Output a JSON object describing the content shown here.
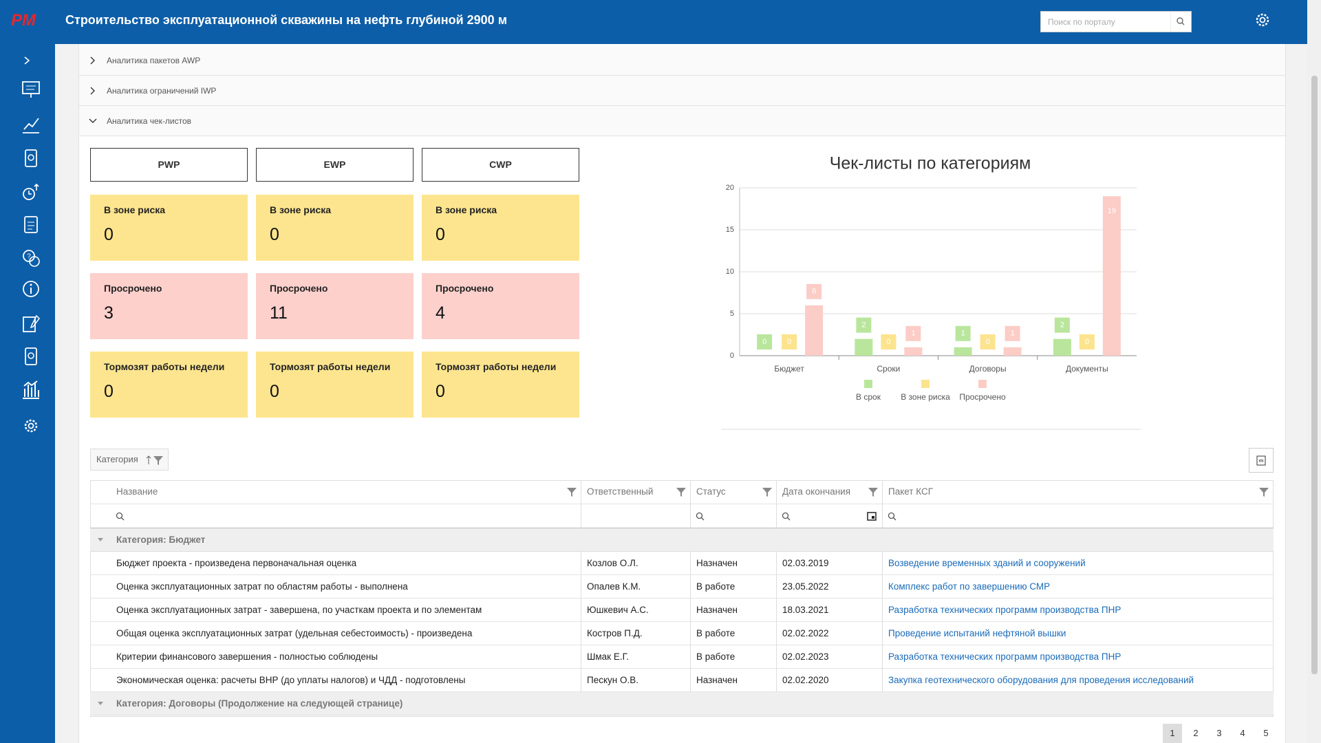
{
  "logo": "PM",
  "header": {
    "title": "Строительство эксплуатационной скважины на нефть глубиной 2900 м",
    "search_placeholder": "Поиск по порталу"
  },
  "accordion": [
    "Аналитика пакетов AWP",
    "Аналитика ограничений IWP",
    "Аналитика чек-листов"
  ],
  "packages": [
    {
      "name": "PWP",
      "tiles": [
        {
          "label": "В зоне риска",
          "value": 0
        },
        {
          "label": "Просрочено",
          "value": 3
        },
        {
          "label": "Тормозят работы недели",
          "value": 0
        }
      ]
    },
    {
      "name": "EWP",
      "tiles": [
        {
          "label": "В зоне риска",
          "value": 0
        },
        {
          "label": "Просрочено",
          "value": 11
        },
        {
          "label": "Тормозят работы недели",
          "value": 0
        }
      ]
    },
    {
      "name": "CWP",
      "tiles": [
        {
          "label": "В зоне риска",
          "value": 0
        },
        {
          "label": "Просрочено",
          "value": 4
        },
        {
          "label": "Тормозят работы недели",
          "value": 0
        }
      ]
    }
  ],
  "chart_data": {
    "type": "bar",
    "title": "Чек-листы по категориям",
    "categories": [
      "Бюджет",
      "Сроки",
      "Договоры",
      "Документы"
    ],
    "series": [
      {
        "name": "В срок",
        "color": "#b9e69c",
        "values": [
          0,
          2,
          1,
          2
        ]
      },
      {
        "name": "В зоне риска",
        "color": "#fce38e",
        "values": [
          0,
          0,
          0,
          0
        ]
      },
      {
        "name": "Просрочено",
        "color": "#fcccc7",
        "values": [
          6,
          1,
          1,
          19
        ]
      }
    ],
    "ylim": [
      0,
      20
    ],
    "yticks": [
      0,
      5,
      10,
      15,
      20
    ],
    "grid": true,
    "legend": "bottom"
  },
  "filter_chip": "Категория",
  "table": {
    "columns": [
      "Название",
      "Ответственный",
      "Статус",
      "Дата окончания",
      "Пакет КСГ"
    ],
    "groups": [
      {
        "label": "Категория: Бюджет",
        "rows": [
          [
            "Бюджет проекта - произведена первоначальная оценка",
            "Козлов О.Л.",
            "Назначен",
            "02.03.2019",
            "Возведение временных зданий и сооружений"
          ],
          [
            "Оценка эксплуатационных затрат по областям работы - выполнена",
            "Опалев К.М.",
            "В работе",
            "23.05.2022",
            "Комплекс работ по завершению СМР"
          ],
          [
            "Оценка эксплуатационных затрат - завершена, по участкам проекта и по элементам",
            "Юшкевич А.С.",
            "Назначен",
            "18.03.2021",
            "Разработка технических программ производства ПНР"
          ],
          [
            "Общая оценка эксплуатационных затрат (удельная себестоимость) - произведена",
            "Костров П.Д.",
            "В работе",
            "02.02.2022",
            "Проведение испытаний нефтяной вышки"
          ],
          [
            "Критерии финансового завершения - полностью соблюдены",
            "Шмак Е.Г.",
            "В работе",
            "02.02.2023",
            "Разработка технических программ производства ПНР"
          ],
          [
            "Экономическая оценка: расчеты ВНР (до уплаты налогов) и ЧДД - подготовлены",
            "Пескун О.В.",
            "Назначен",
            "02.02.2020",
            "Закупка геотехнического оборудования для проведения исследований"
          ]
        ]
      },
      {
        "label": "Категория: Договоры (Продолжение на следующей странице)"
      }
    ]
  },
  "pagination": [
    1,
    2,
    3,
    4,
    5
  ]
}
